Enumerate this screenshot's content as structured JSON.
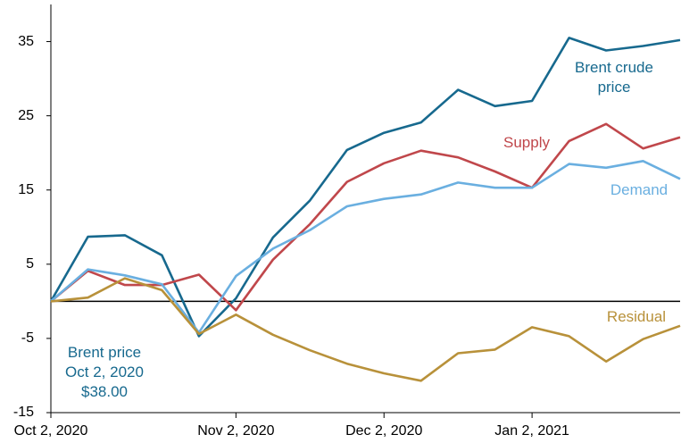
{
  "chart_data": {
    "type": "line",
    "categories": [
      "Oct 2, 2020",
      null,
      null,
      null,
      null,
      "Nov 2, 2020",
      null,
      null,
      null,
      "Dec 2, 2020",
      null,
      null,
      null,
      "Jan 2, 2021",
      null,
      null,
      null,
      null
    ],
    "series": [
      {
        "name": "Brent crude price",
        "color": "#17698e",
        "values": [
          0,
          8.7,
          8.9,
          6.2,
          -4.7,
          0.4,
          8.6,
          13.6,
          20.4,
          22.7,
          24.1,
          28.5,
          26.3,
          27,
          35.5,
          33.8,
          34.4,
          35.2
        ]
      },
      {
        "name": "Supply",
        "color": "#c0474b",
        "values": [
          0,
          4.1,
          2.2,
          2.2,
          3.6,
          -1.2,
          5.6,
          10.4,
          16.1,
          18.6,
          20.3,
          19.4,
          17.5,
          15.3,
          21.6,
          23.9,
          20.6,
          22.1
        ]
      },
      {
        "name": "Demand",
        "color": "#6aafe0",
        "values": [
          0,
          4.3,
          3.5,
          2.3,
          -4.2,
          3.4,
          7.1,
          9.6,
          12.8,
          13.8,
          14.4,
          16,
          15.3,
          15.3,
          18.5,
          18,
          18.9,
          16.5
        ]
      },
      {
        "name": "Residual",
        "color": "#b8913a",
        "values": [
          0,
          0.5,
          3.1,
          1.5,
          -4.4,
          -1.8,
          -4.5,
          -6.6,
          -8.4,
          -9.7,
          -10.7,
          -7,
          -6.5,
          -3.5,
          -4.7,
          -8.1,
          -5.1,
          -3.3
        ]
      }
    ],
    "annotation": [
      "Brent price",
      "Oct 2, 2020",
      "$38.00"
    ],
    "ylim": [
      -15,
      40
    ],
    "yticks": [
      -15,
      -5,
      5,
      15,
      25,
      35
    ],
    "zero_line": true
  }
}
